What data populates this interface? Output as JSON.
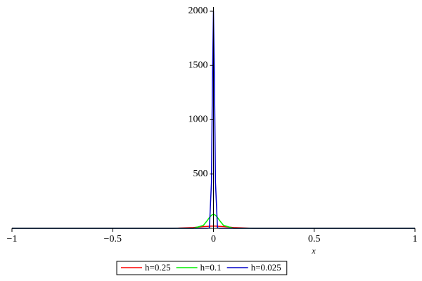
{
  "chart_data": {
    "type": "line",
    "x_label": "x",
    "x": [
      -1,
      -0.5,
      -0.2,
      -0.1,
      -0.05,
      -0.03,
      -0.02,
      -0.01,
      -0.005,
      0,
      0.005,
      0.01,
      0.02,
      0.03,
      0.05,
      0.1,
      0.2,
      0.5,
      1
    ],
    "series": [
      {
        "name": "h=0.25",
        "color": "#ff0000",
        "values": [
          0,
          0,
          0.3,
          7,
          16,
          18,
          19,
          20,
          20,
          20,
          20,
          20,
          19,
          18,
          16,
          7,
          0.3,
          0,
          0
        ]
      },
      {
        "name": "h=0.1",
        "color": "#00ee00",
        "values": [
          0,
          0,
          0,
          0.2,
          27,
          73,
          100,
          120,
          126,
          128,
          126,
          120,
          100,
          73,
          27,
          0.2,
          0,
          0,
          0
        ]
      },
      {
        "name": "h=0.025",
        "color": "#0000c8",
        "values": [
          0,
          0,
          0,
          0,
          0,
          0,
          4,
          420,
          1354,
          2000,
          1354,
          420,
          4,
          0,
          0,
          0,
          0,
          0,
          0
        ]
      }
    ],
    "xlim": [
      -1,
      1
    ],
    "ylim": [
      0,
      2000
    ],
    "xticks": [
      {
        "value": -1,
        "label": "−1"
      },
      {
        "value": -0.5,
        "label": "−0.5"
      },
      0,
      0.5,
      1
    ],
    "yticks": [
      500,
      1000,
      1500,
      2000
    ],
    "legend": "bottom"
  }
}
